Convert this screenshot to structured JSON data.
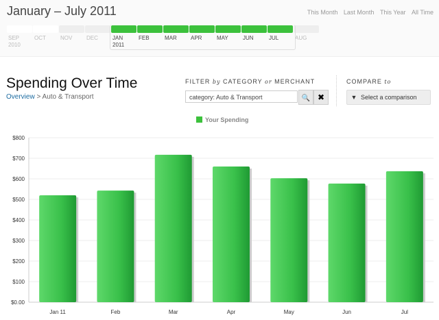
{
  "header": {
    "date_range": "January – July 2011",
    "quick_links": [
      "This Month",
      "Last Month",
      "This Year",
      "All Time"
    ]
  },
  "timeline": [
    {
      "m": "SEP",
      "y": "2010",
      "state": "w"
    },
    {
      "m": "OCT",
      "state": "w"
    },
    {
      "m": "NOV",
      "state": ""
    },
    {
      "m": "DEC",
      "state": ""
    },
    {
      "m": "JAN",
      "y": "2011",
      "state": "on"
    },
    {
      "m": "FEB",
      "state": "on"
    },
    {
      "m": "MAR",
      "state": "on"
    },
    {
      "m": "APR",
      "state": "on"
    },
    {
      "m": "MAY",
      "state": "on"
    },
    {
      "m": "JUN",
      "state": "on"
    },
    {
      "m": "JUL",
      "state": "on"
    },
    {
      "m": "AUG",
      "state": ""
    }
  ],
  "page": {
    "title": "Spending Over Time",
    "crumb_link": "Overview",
    "crumb_sep": ">",
    "crumb_current": "Auto & Transport"
  },
  "filter": {
    "label_a": "FILTER ",
    "label_b": "by",
    "label_c": " CATEGORY ",
    "label_d": "or",
    "label_e": " MERCHANT",
    "value": "category: Auto & Transport",
    "search_glyph": "🔍",
    "clear_glyph": "✖"
  },
  "compare": {
    "label": "COMPARE ",
    "label_to": "to",
    "button": "Select a comparison"
  },
  "chart_data": {
    "type": "bar",
    "categories": [
      "Jan 11",
      "Feb",
      "Mar",
      "Apr",
      "May",
      "Jun",
      "Jul"
    ],
    "series": [
      {
        "name": "Your Spending",
        "values": [
          520,
          543,
          717,
          660,
          603,
          577,
          637
        ],
        "color": "#3cc13c"
      }
    ],
    "ylim": [
      0,
      800
    ],
    "yticks": [
      "$0.00",
      "$100",
      "$200",
      "$300",
      "$400",
      "$500",
      "$600",
      "$700",
      "$800"
    ],
    "legend": "top-center",
    "grid": true
  }
}
